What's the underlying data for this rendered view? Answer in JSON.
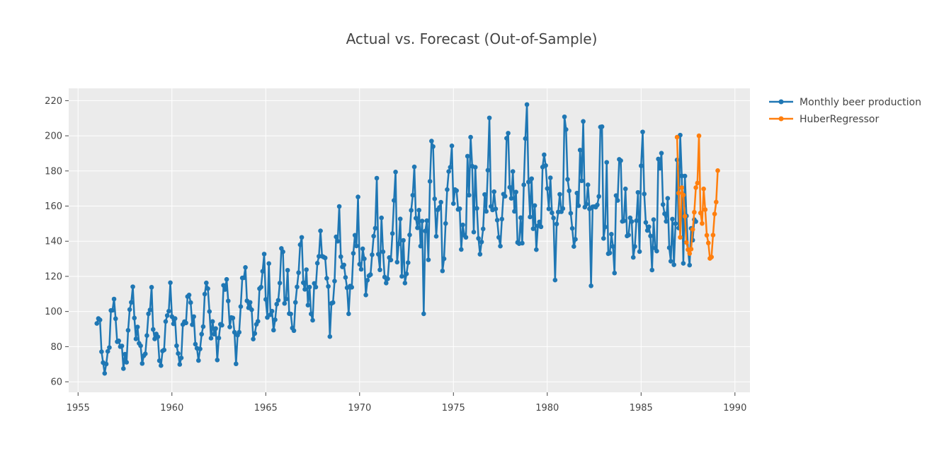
{
  "chart_data": {
    "type": "line",
    "title": "Actual vs. Forecast (Out-of-Sample)",
    "xlabel": "",
    "ylabel": "",
    "xlim": [
      1954.5,
      1990.8
    ],
    "ylim": [
      54,
      227
    ],
    "xticks": [
      1955,
      1960,
      1965,
      1970,
      1975,
      1980,
      1985,
      1990
    ],
    "yticks": [
      60,
      80,
      100,
      120,
      140,
      160,
      180,
      200,
      220
    ],
    "grid": true,
    "legend_position": "top-right",
    "series": [
      {
        "name": "Monthly beer production",
        "color": "#1f77b4",
        "start_year": 1956,
        "start_month": 1,
        "values": [
          93.2,
          96.0,
          95.2,
          77.1,
          70.9,
          64.8,
          70.1,
          77.3,
          79.5,
          100.6,
          100.7,
          107.1,
          95.9,
          82.8,
          83.3,
          80.0,
          80.4,
          67.5,
          75.7,
          71.1,
          89.3,
          101.1,
          105.2,
          114.1,
          96.3,
          84.4,
          91.2,
          81.9,
          80.5,
          70.4,
          74.8,
          75.9,
          86.3,
          98.7,
          100.9,
          113.8,
          89.8,
          84.4,
          87.2,
          85.6,
          72.0,
          69.2,
          77.5,
          78.1,
          94.3,
          97.7,
          100.2,
          116.4,
          97.1,
          93.0,
          96.0,
          80.5,
          76.1,
          69.9,
          73.6,
          92.6,
          94.2,
          93.5,
          108.5,
          109.4,
          105.1,
          92.5,
          97.1,
          81.4,
          79.1,
          72.1,
          78.7,
          87.1,
          91.4,
          109.9,
          116.3,
          113.0,
          100.0,
          84.8,
          94.3,
          87.1,
          90.3,
          72.4,
          84.9,
          92.7,
          92.2,
          114.9,
          112.5,
          118.3,
          106.0,
          91.2,
          96.6,
          96.3,
          88.2,
          70.2,
          86.5,
          88.2,
          102.8,
          119.1,
          119.2,
          125.1,
          106.1,
          102.1,
          105.2,
          101.0,
          84.3,
          87.5,
          92.7,
          94.4,
          113.0,
          113.9,
          122.9,
          132.7,
          106.9,
          96.6,
          127.3,
          98.2,
          100.2,
          89.4,
          95.3,
          104.2,
          106.4,
          116.2,
          135.9,
          134.0,
          104.6,
          107.1,
          123.5,
          98.8,
          98.6,
          90.6,
          89.1,
          105.2,
          114.0,
          122.1,
          138.0,
          142.2,
          116.4,
          112.6,
          123.8,
          103.6,
          113.9,
          98.6,
          95.0,
          116.0,
          113.9,
          127.5,
          131.4,
          145.9,
          131.5,
          131.0,
          130.5,
          118.9,
          114.3,
          85.7,
          104.6,
          105.1,
          117.3,
          142.5,
          140.0,
          159.8,
          131.2,
          125.4,
          126.5,
          119.4,
          113.5,
          98.7,
          114.5,
          113.8,
          133.1,
          143.4,
          137.3,
          165.2,
          126.9,
          124.0,
          135.7,
          130.0,
          109.4,
          117.8,
          120.3,
          121.0,
          132.3,
          142.9,
          147.4,
          175.9,
          132.6,
          123.7,
          153.3,
          134.0,
          119.6,
          116.2,
          118.6,
          130.7,
          129.3,
          144.4,
          163.2,
          179.4,
          128.1,
          138.4,
          152.7,
          120.0,
          140.5,
          116.2,
          121.4,
          127.8,
          143.6,
          157.6,
          166.2,
          182.3,
          153.1,
          147.6,
          157.7,
          137.2,
          151.5,
          98.7,
          145.8,
          151.7,
          129.4,
          174.1,
          197.0,
          193.9,
          164.1,
          142.8,
          157.9,
          159.2,
          162.2,
          123.1,
          130.0,
          150.1,
          169.4,
          179.7,
          182.1,
          194.3,
          161.4,
          169.4,
          168.8,
          158.1,
          158.5,
          135.3,
          149.3,
          143.4,
          142.2,
          188.4,
          166.2,
          199.2,
          182.7,
          145.2,
          182.1,
          158.7,
          141.6,
          132.6,
          139.6,
          147.0,
          166.6,
          157.0,
          180.4,
          210.2,
          159.8,
          157.8,
          168.2,
          158.4,
          152.0,
          142.2,
          137.2,
          152.6,
          166.8,
          165.6,
          198.6,
          201.5,
          170.7,
          164.4,
          179.7,
          157.0,
          168.0,
          139.3,
          138.6,
          153.4,
          138.9,
          172.1,
          198.4,
          217.8,
          173.7,
          153.8,
          175.6,
          147.1,
          160.3,
          135.2,
          148.8,
          151.0,
          148.2,
          182.2,
          189.2,
          183.1,
          170.0,
          158.4,
          176.1,
          156.2,
          153.2,
          117.9,
          149.8,
          156.6,
          166.7,
          156.8,
          158.6,
          210.8,
          203.6,
          175.2,
          168.7,
          155.9,
          147.3,
          137.0,
          141.1,
          167.4,
          160.2,
          191.9,
          174.4,
          208.2,
          159.4,
          161.1,
          172.1,
          158.4,
          114.6,
          159.6,
          159.7,
          159.4,
          160.7,
          165.5,
          205.0,
          205.2,
          141.6,
          148.1,
          184.9,
          132.9,
          133.3,
          144.0,
          137.0,
          121.9,
          166.0,
          163.2,
          186.6,
          185.9,
          151.3,
          151.6,
          169.8,
          143.0,
          143.5,
          153.3,
          151.2,
          130.8,
          137.0,
          151.7,
          167.8,
          134.1,
          182.9,
          202.2,
          166.9,
          150.7,
          146.1,
          148.2,
          143.0,
          123.6,
          152.3,
          136.1,
          134.4,
          186.8,
          181.5,
          190.1,
          160.9,
          155.6,
          151.3,
          164.4,
          136.3,
          128.6,
          152.6,
          126.6,
          150.0,
          186.3,
          147.5,
          200.4,
          177.2,
          127.4,
          177.1,
          154.4,
          135.2,
          126.4,
          147.3,
          140.6,
          152.3,
          151.2
        ]
      },
      {
        "name": "HuberRegressor",
        "color": "#ff7f0e",
        "start_year": 1986,
        "start_month": 12,
        "values": [
          199.2,
          167.4,
          142.2,
          170.5,
          166.3,
          154.2,
          139.3,
          135.2,
          133.0,
          135.5,
          146.7,
          156.5,
          170.5,
          173.1,
          200.0,
          156.1,
          150.1,
          169.8,
          158.0,
          143.4,
          139.0,
          130.2,
          131.0,
          143.5,
          155.5,
          162.3,
          180.2
        ]
      }
    ]
  }
}
